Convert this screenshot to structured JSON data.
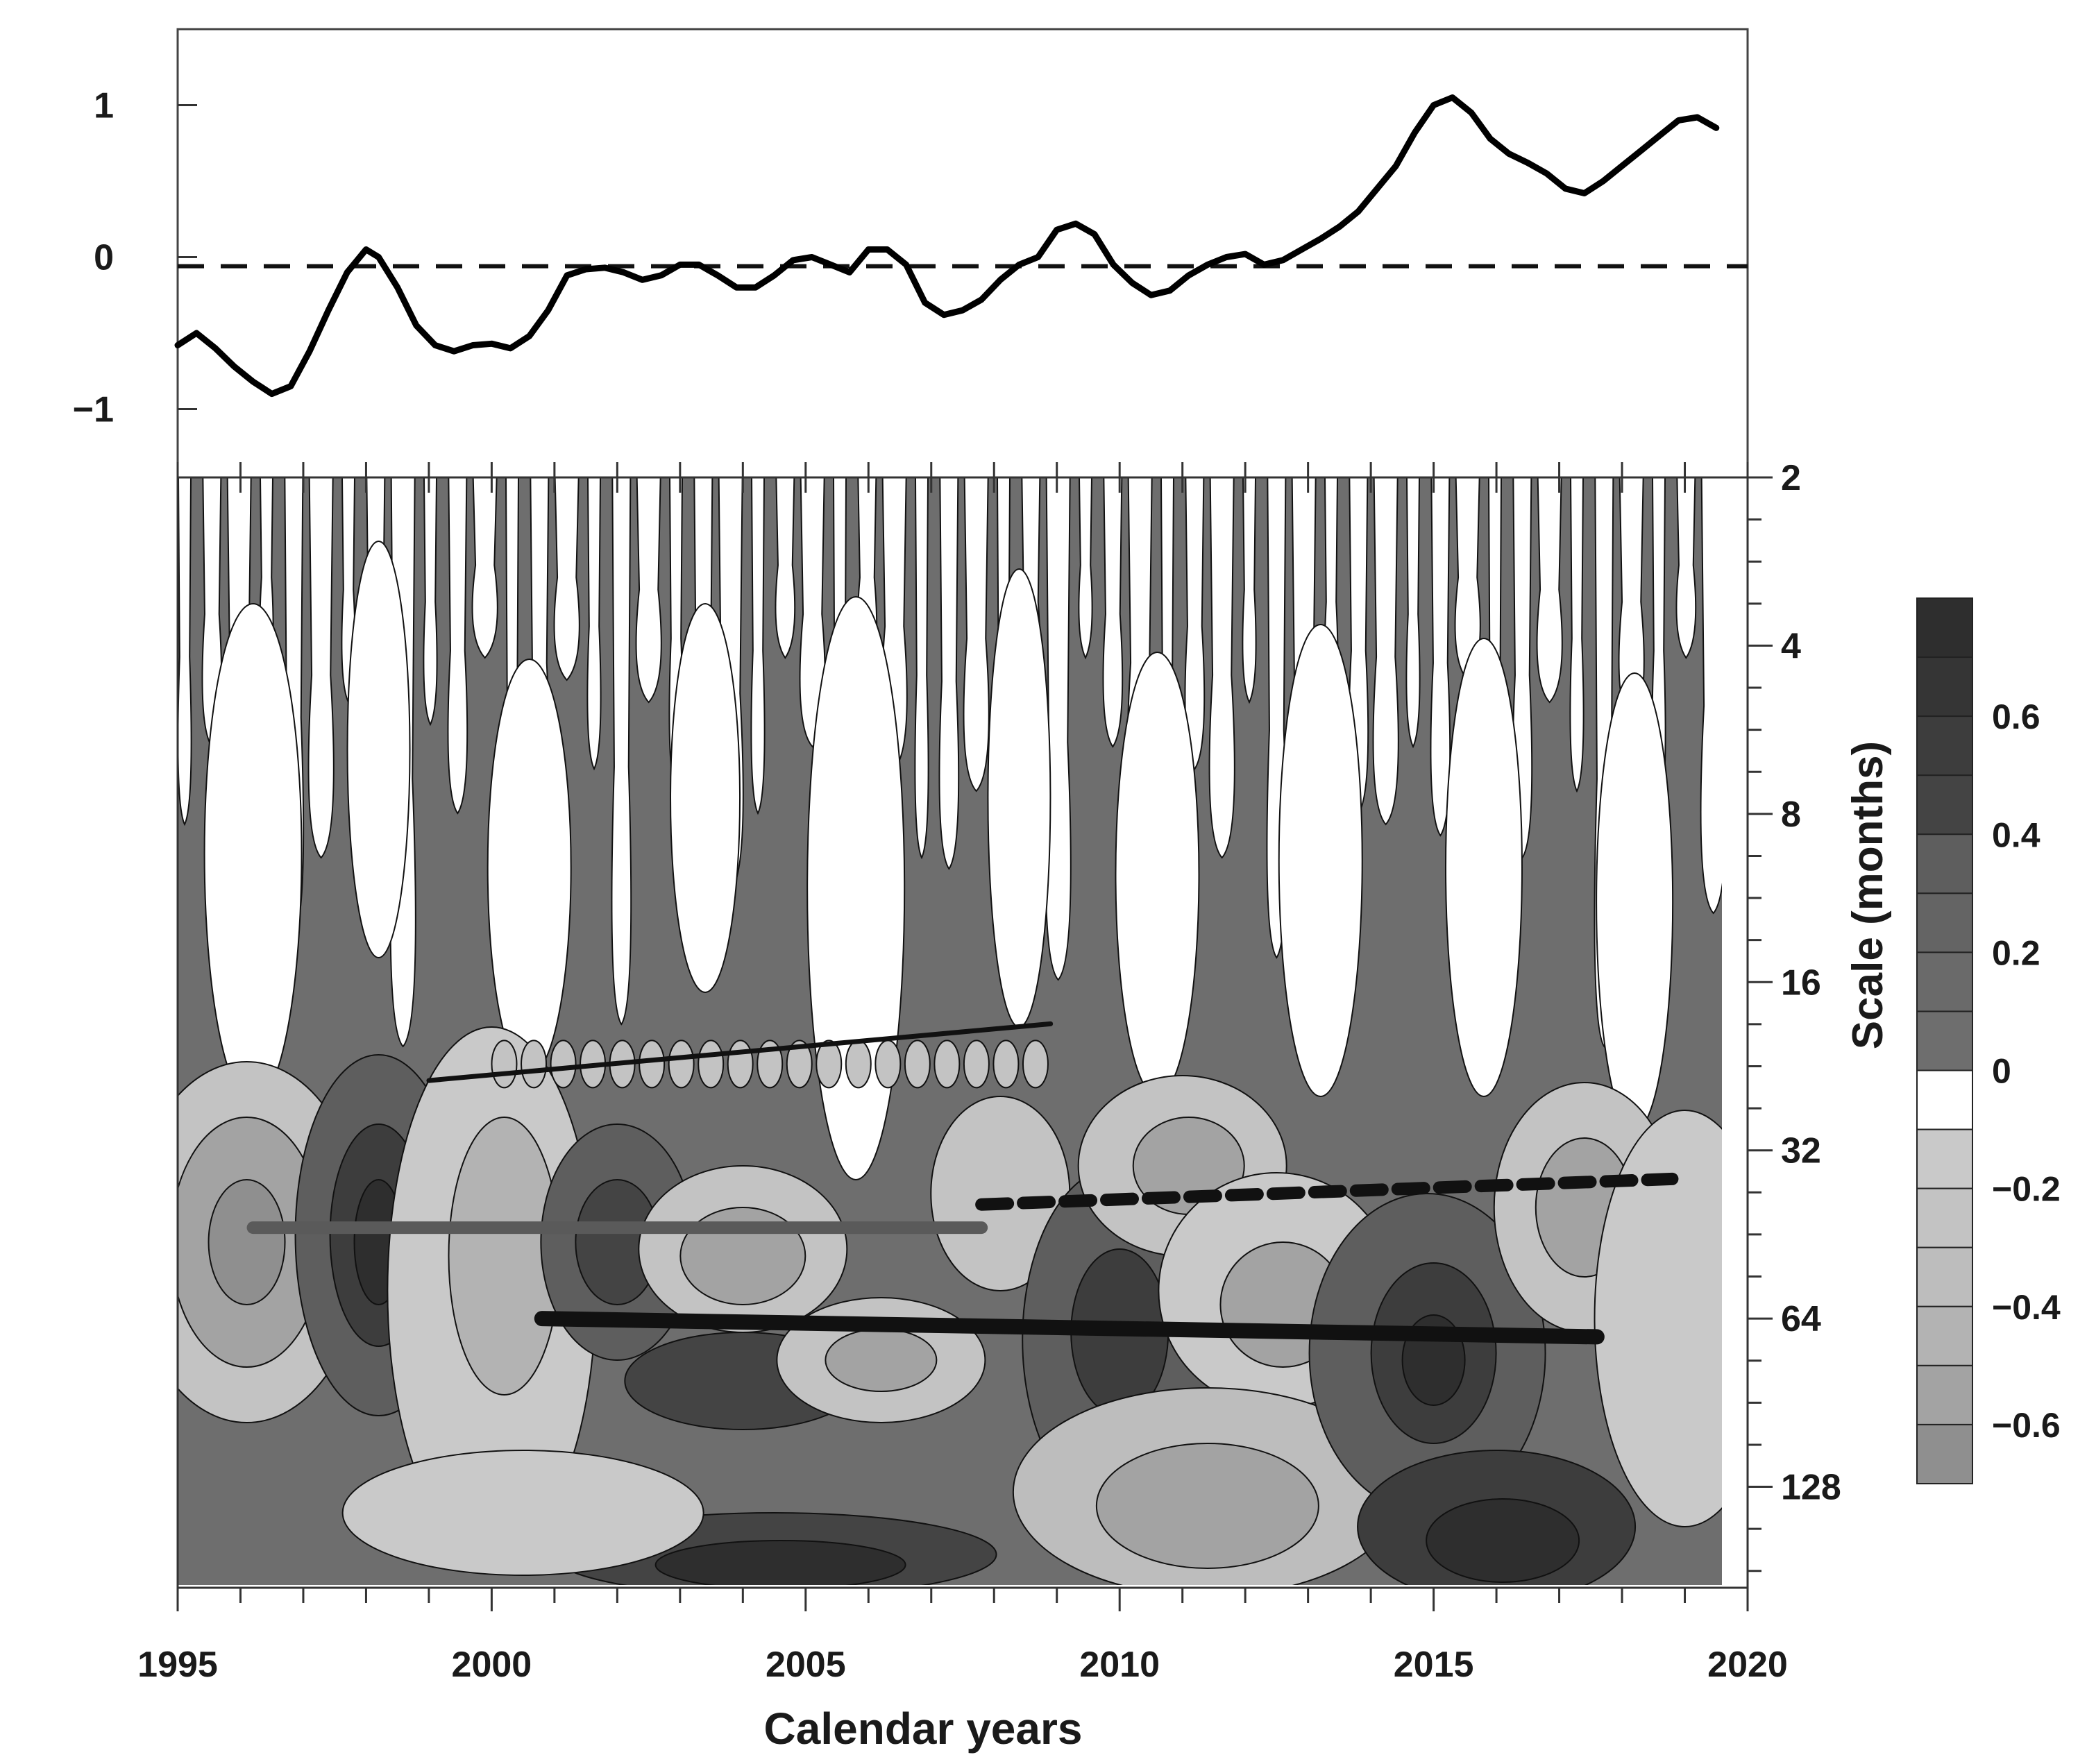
{
  "chart_data": [
    {
      "type": "line",
      "panel": "top",
      "description_label": "time series (standardized index)",
      "y_ticks": [
        "1",
        "0",
        "−1"
      ],
      "y_tick_values": [
        1,
        0,
        -1
      ],
      "ylim": [
        -1.45,
        1.5
      ],
      "xlim": [
        1995,
        2020
      ],
      "reference_line_y": -0.06,
      "series": [
        {
          "name": "index",
          "x": [
            1995.0,
            1995.3,
            1995.6,
            1995.9,
            1996.2,
            1996.5,
            1996.8,
            1997.1,
            1997.4,
            1997.7,
            1998.0,
            1998.2,
            1998.5,
            1998.8,
            1999.1,
            1999.4,
            1999.7,
            2000.0,
            2000.3,
            2000.6,
            2000.9,
            2001.2,
            2001.5,
            2001.8,
            2002.1,
            2002.4,
            2002.7,
            2003.0,
            2003.3,
            2003.6,
            2003.9,
            2004.2,
            2004.5,
            2004.8,
            2005.1,
            2005.4,
            2005.7,
            2006.0,
            2006.3,
            2006.6,
            2006.9,
            2007.2,
            2007.5,
            2007.8,
            2008.1,
            2008.4,
            2008.7,
            2009.0,
            2009.3,
            2009.6,
            2009.9,
            2010.2,
            2010.5,
            2010.8,
            2011.1,
            2011.4,
            2011.7,
            2012.0,
            2012.3,
            2012.6,
            2012.9,
            2013.2,
            2013.5,
            2013.8,
            2014.1,
            2014.4,
            2014.7,
            2015.0,
            2015.3,
            2015.6,
            2015.9,
            2016.2,
            2016.5,
            2016.8,
            2017.1,
            2017.4,
            2017.7,
            2018.0,
            2018.3,
            2018.6,
            2018.9,
            2019.2,
            2019.5
          ],
          "values": [
            -0.58,
            -0.5,
            -0.6,
            -0.72,
            -0.82,
            -0.9,
            -0.85,
            -0.62,
            -0.35,
            -0.1,
            0.05,
            0.0,
            -0.2,
            -0.45,
            -0.58,
            -0.62,
            -0.58,
            -0.57,
            -0.6,
            -0.52,
            -0.35,
            -0.12,
            -0.08,
            -0.07,
            -0.1,
            -0.15,
            -0.12,
            -0.05,
            -0.05,
            -0.12,
            -0.2,
            -0.2,
            -0.12,
            -0.02,
            0.0,
            -0.05,
            -0.1,
            0.05,
            0.05,
            -0.05,
            -0.3,
            -0.38,
            -0.35,
            -0.28,
            -0.15,
            -0.05,
            0.0,
            0.18,
            0.22,
            0.15,
            -0.05,
            -0.17,
            -0.25,
            -0.22,
            -0.12,
            -0.05,
            0.0,
            0.02,
            -0.05,
            -0.02,
            0.05,
            0.12,
            0.2,
            0.3,
            0.45,
            0.6,
            0.82,
            1.0,
            1.05,
            0.95,
            0.78,
            0.68,
            0.62,
            0.55,
            0.45,
            0.42,
            0.5,
            0.6,
            0.7,
            0.8,
            0.9,
            0.92,
            0.85
          ]
        }
      ]
    },
    {
      "type": "heatmap",
      "panel": "bottom",
      "subtype": "wavelet coefficient contour map",
      "xlabel": "Calendar years",
      "ylabel": "Scale (months)",
      "x_ticks": [
        "1995",
        "2000",
        "2005",
        "2010",
        "2015",
        "2020"
      ],
      "x_tick_values": [
        1995,
        2000,
        2005,
        2010,
        2015,
        2020
      ],
      "xlim": [
        1995,
        2020
      ],
      "y_ticks": [
        "2",
        "4",
        "8",
        "16",
        "32",
        "64",
        "128"
      ],
      "y_tick_values": [
        2,
        4,
        8,
        16,
        32,
        64,
        128
      ],
      "ylim_log2": [
        1,
        7.6
      ],
      "colorbar": {
        "ticks": [
          "0.6",
          "0.4",
          "0.2",
          "0",
          "−0.2",
          "−0.4",
          "−0.6"
        ],
        "tick_values": [
          0.6,
          0.4,
          0.2,
          0,
          -0.2,
          -0.4,
          -0.6
        ],
        "bins": [
          {
            "from": 0.7,
            "to": 0.8,
            "color": "#2e2e2e"
          },
          {
            "from": 0.6,
            "to": 0.7,
            "color": "#353535"
          },
          {
            "from": 0.5,
            "to": 0.6,
            "color": "#3d3d3d"
          },
          {
            "from": 0.4,
            "to": 0.5,
            "color": "#444444"
          },
          {
            "from": 0.3,
            "to": 0.4,
            "color": "#5e5e5e"
          },
          {
            "from": 0.2,
            "to": 0.3,
            "color": "#646464"
          },
          {
            "from": 0.1,
            "to": 0.2,
            "color": "#6a6a6a"
          },
          {
            "from": 0.0,
            "to": 0.1,
            "color": "#6e6e6e"
          },
          {
            "from": -0.1,
            "to": 0.0,
            "color": "#ffffff"
          },
          {
            "from": -0.2,
            "to": -0.1,
            "color": "#c9c9c9"
          },
          {
            "from": -0.3,
            "to": -0.2,
            "color": "#c3c3c3"
          },
          {
            "from": -0.4,
            "to": -0.3,
            "color": "#bdbdbd"
          },
          {
            "from": -0.5,
            "to": -0.4,
            "color": "#b3b3b3"
          },
          {
            "from": -0.6,
            "to": -0.5,
            "color": "#a3a3a3"
          },
          {
            "from": -0.7,
            "to": -0.6,
            "color": "#8f8f8f"
          }
        ]
      },
      "trend_lines": [
        {
          "name": "thin-black-trend",
          "x": [
            1999.0,
            2008.9
          ],
          "scale_months": [
            24.0,
            19.0
          ],
          "style": "solid-thin",
          "color": "#111111"
        },
        {
          "name": "gray-trend",
          "x": [
            1996.2,
            2007.8
          ],
          "scale_months": [
            44.0,
            44.0
          ],
          "style": "solid-thick",
          "color": "#5a5a5a"
        },
        {
          "name": "dashed-trend",
          "x": [
            2007.8,
            2018.8
          ],
          "scale_months": [
            40.0,
            36.0
          ],
          "style": "dashed-thick",
          "color": "#111111"
        },
        {
          "name": "heavy-black-trend",
          "x": [
            2000.8,
            2017.6
          ],
          "scale_months": [
            64.0,
            69.0
          ],
          "style": "solid-heavy",
          "color": "#111111"
        }
      ]
    }
  ]
}
